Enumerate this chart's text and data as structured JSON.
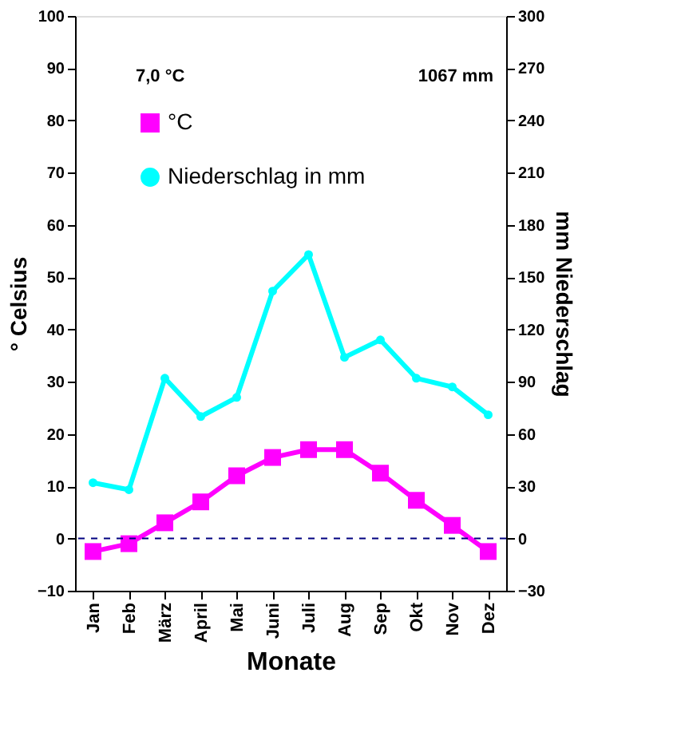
{
  "chart_data": {
    "type": "line",
    "xlabel": "Monate",
    "ylabel": "° Celsius",
    "y2label": "mm Niederschlag",
    "categories": [
      "Jan",
      "Feb",
      "März",
      "April",
      "Mai",
      "Juni",
      "Juli",
      "Aug",
      "Sep",
      "Okt",
      "Nov",
      "Dez"
    ],
    "series": [
      {
        "name": "°C",
        "color": "#ff00ff",
        "marker": "square",
        "values": [
          -2.5,
          -1,
          3,
          7,
          12,
          15.5,
          17,
          17,
          12.5,
          7.3,
          2.5,
          -2.5
        ]
      },
      {
        "name": "Niederschlag in mm",
        "color": "#00ffff",
        "marker": "circle",
        "axis": "y2",
        "values": [
          32,
          28,
          92,
          70,
          81,
          142,
          163,
          104,
          114,
          92,
          87,
          71
        ]
      }
    ],
    "ylim": [
      -10,
      100
    ],
    "yticks": [
      -10,
      0,
      10,
      20,
      30,
      40,
      50,
      60,
      70,
      80,
      90,
      100
    ],
    "y2lim": [
      -30,
      300
    ],
    "y2ticks": [
      -30,
      0,
      30,
      60,
      90,
      120,
      150,
      180,
      210,
      240,
      270,
      300
    ],
    "ref_lines": [
      {
        "axis": "y",
        "value": 0,
        "color": "#000080",
        "line_style": "dashed"
      }
    ],
    "annotations": [
      "7,0 °C",
      "1067 mm"
    ],
    "legend": "top left",
    "grid": false
  }
}
